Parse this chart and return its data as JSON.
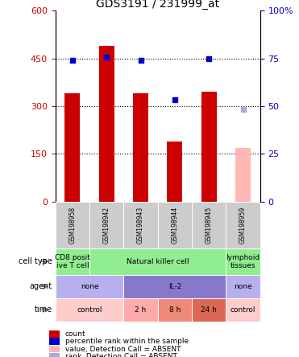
{
  "title": "GDS3191 / 231999_at",
  "samples": [
    "GSM198958",
    "GSM198942",
    "GSM198943",
    "GSM198944",
    "GSM198945",
    "GSM198959"
  ],
  "bar_values": [
    340,
    490,
    340,
    190,
    345,
    170
  ],
  "bar_colors": [
    "#cc0000",
    "#cc0000",
    "#cc0000",
    "#cc0000",
    "#cc0000",
    "#ffb6b4"
  ],
  "dot_values": [
    445,
    455,
    445,
    320,
    448,
    290
  ],
  "dot_colors": [
    "#0000cc",
    "#0000cc",
    "#0000cc",
    "#0000cc",
    "#0000cc",
    "#aaaadd"
  ],
  "ylim_left": [
    0,
    600
  ],
  "ylim_right": [
    0,
    100
  ],
  "yticks_left": [
    0,
    150,
    300,
    450,
    600
  ],
  "ytick_labels_left": [
    "0",
    "150",
    "300",
    "450",
    "600"
  ],
  "ytick_labels_right": [
    "0",
    "25",
    "50",
    "75",
    "100%"
  ],
  "cell_type_groups": [
    {
      "label": "CD8 posit\nive T cell",
      "cols": [
        0,
        0
      ],
      "color": "#90ee90"
    },
    {
      "label": "Natural killer cell",
      "cols": [
        1,
        4
      ],
      "color": "#90ee90"
    },
    {
      "label": "lymphoid\ntissues",
      "cols": [
        5,
        5
      ],
      "color": "#90ee90"
    }
  ],
  "agent_groups": [
    {
      "label": "none",
      "cols": [
        0,
        1
      ],
      "color": "#b8b0ee"
    },
    {
      "label": "IL-2",
      "cols": [
        2,
        4
      ],
      "color": "#8878cc"
    },
    {
      "label": "none",
      "cols": [
        5,
        5
      ],
      "color": "#b8b0ee"
    }
  ],
  "time_groups": [
    {
      "label": "control",
      "cols": [
        0,
        1
      ],
      "color": "#ffcccc"
    },
    {
      "label": "2 h",
      "cols": [
        2,
        2
      ],
      "color": "#ffaaaa"
    },
    {
      "label": "8 h",
      "cols": [
        3,
        3
      ],
      "color": "#ee8877"
    },
    {
      "label": "24 h",
      "cols": [
        4,
        4
      ],
      "color": "#dd6655"
    },
    {
      "label": "control",
      "cols": [
        5,
        5
      ],
      "color": "#ffcccc"
    }
  ],
  "row_labels": [
    "cell type",
    "agent",
    "time"
  ],
  "legend_items": [
    {
      "color": "#cc0000",
      "label": "count",
      "marker": "square"
    },
    {
      "color": "#0000cc",
      "label": "percentile rank within the sample",
      "marker": "square"
    },
    {
      "color": "#ffb6b4",
      "label": "value, Detection Call = ABSENT",
      "marker": "square"
    },
    {
      "color": "#aaaadd",
      "label": "rank, Detection Call = ABSENT",
      "marker": "square"
    }
  ],
  "left_axis_color": "#cc0000",
  "right_axis_color": "#0000cc",
  "fig_width": 3.71,
  "fig_height": 4.44,
  "dpi": 100
}
